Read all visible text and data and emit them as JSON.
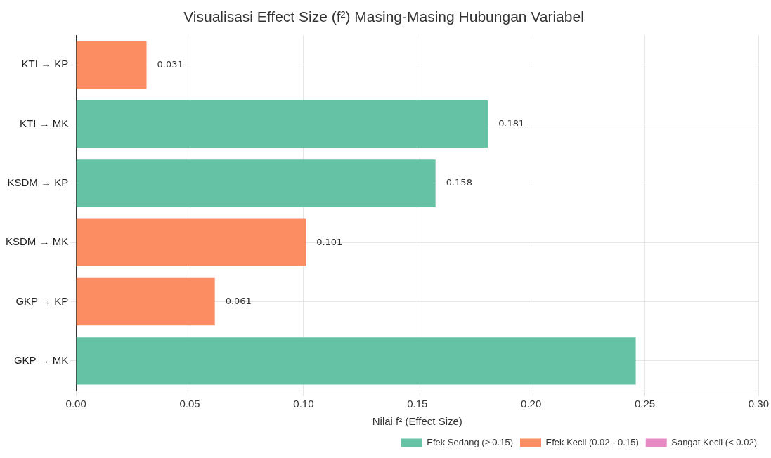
{
  "chart_data": {
    "type": "bar",
    "orientation": "horizontal",
    "title": "Visualisasi Effect Size (f²) Masing-Masing Hubungan Variabel",
    "xlabel": "Nilai f² (Effect Size)",
    "categories": [
      "KTI → KP",
      "KTI → MK",
      "KSDM → KP",
      "KSDM → MK",
      "GKP → KP",
      "GKP → MK"
    ],
    "series": [
      {
        "name": "Efek Sedang (≥ 0.15)",
        "color": "#66c2a5",
        "values": [
          null,
          0.181,
          0.158,
          null,
          null,
          0.246
        ],
        "value_labels": [
          null,
          "0.181",
          "0.158",
          null,
          null,
          null
        ]
      },
      {
        "name": "Efek Kecil (0.02 - 0.15)",
        "color": "#fc8d62",
        "values": [
          0.031,
          null,
          null,
          0.101,
          0.061,
          null
        ],
        "value_labels": [
          "0.031",
          null,
          null,
          "0.101",
          "0.061",
          null
        ]
      },
      {
        "name": "Sangat Kecil (< 0.02)",
        "color": "#e78ac3",
        "values": [
          null,
          null,
          null,
          null,
          null,
          null
        ]
      }
    ],
    "xlim": [
      0,
      0.3
    ],
    "xticks": [
      {
        "value": 0,
        "label": "0.00"
      },
      {
        "value": 0.05,
        "label": "0.05"
      },
      {
        "value": 0.1,
        "label": "0.10"
      },
      {
        "value": 0.15,
        "label": "0.15"
      },
      {
        "value": 0.2,
        "label": "0.20"
      },
      {
        "value": 0.25,
        "label": "0.25"
      },
      {
        "value": 0.3,
        "label": "0.30"
      }
    ],
    "grid": true,
    "legend": "bottom right"
  }
}
